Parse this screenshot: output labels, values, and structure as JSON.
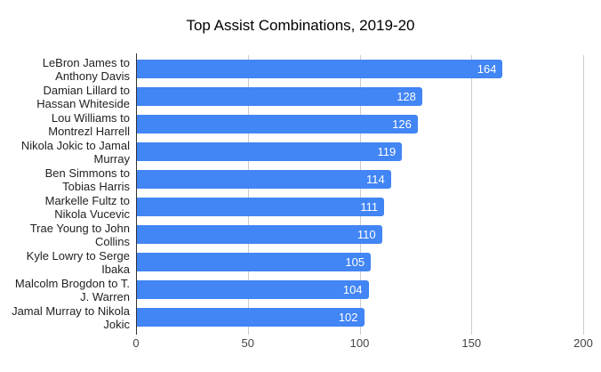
{
  "chart_data": {
    "type": "bar",
    "orientation": "horizontal",
    "title": "Top Assist Combinations, 2019-20",
    "categories": [
      "LeBron James to Anthony Davis",
      "Damian Lillard to Hassan Whiteside",
      "Lou Williams to Montrezl Harrell",
      "Nikola Jokic to Jamal Murray",
      "Ben Simmons to Tobias Harris",
      "Markelle Fultz to Nikola Vucevic",
      "Trae Young to John Collins",
      "Kyle Lowry to Serge Ibaka",
      "Malcolm Brogdon to T. J. Warren",
      "Jamal Murray to Nikola Jokic"
    ],
    "category_label_lines": [
      [
        "LeBron James to",
        "Anthony Davis"
      ],
      [
        "Damian Lillard to",
        "Hassan Whiteside"
      ],
      [
        "Lou Williams to",
        "Montrezl Harrell"
      ],
      [
        "Nikola Jokic to Jamal",
        "Murray"
      ],
      [
        "Ben Simmons to",
        "Tobias Harris"
      ],
      [
        "Markelle Fultz to",
        "Nikola Vucevic"
      ],
      [
        "Trae Young to John",
        "Collins"
      ],
      [
        "Kyle Lowry to Serge",
        "Ibaka"
      ],
      [
        "Malcolm Brogdon to T.",
        "J. Warren"
      ],
      [
        "Jamal Murray to Nikola",
        "Jokic"
      ]
    ],
    "values": [
      164,
      128,
      126,
      119,
      114,
      111,
      110,
      105,
      104,
      102
    ],
    "xlabel": "",
    "ylabel": "",
    "xlim": [
      0,
      200
    ],
    "x_ticks": [
      0,
      50,
      100,
      150,
      200
    ],
    "grid": true,
    "legend": "none",
    "value_labels_inside_bars": true,
    "colors": {
      "bar": "#4285f4",
      "value_label": "#ffffff",
      "gridline": "#cccccc",
      "axis_line": "#333333",
      "tick_label": "#444444",
      "category_label": "#222222",
      "title": "#000000",
      "background": "#ffffff"
    }
  }
}
